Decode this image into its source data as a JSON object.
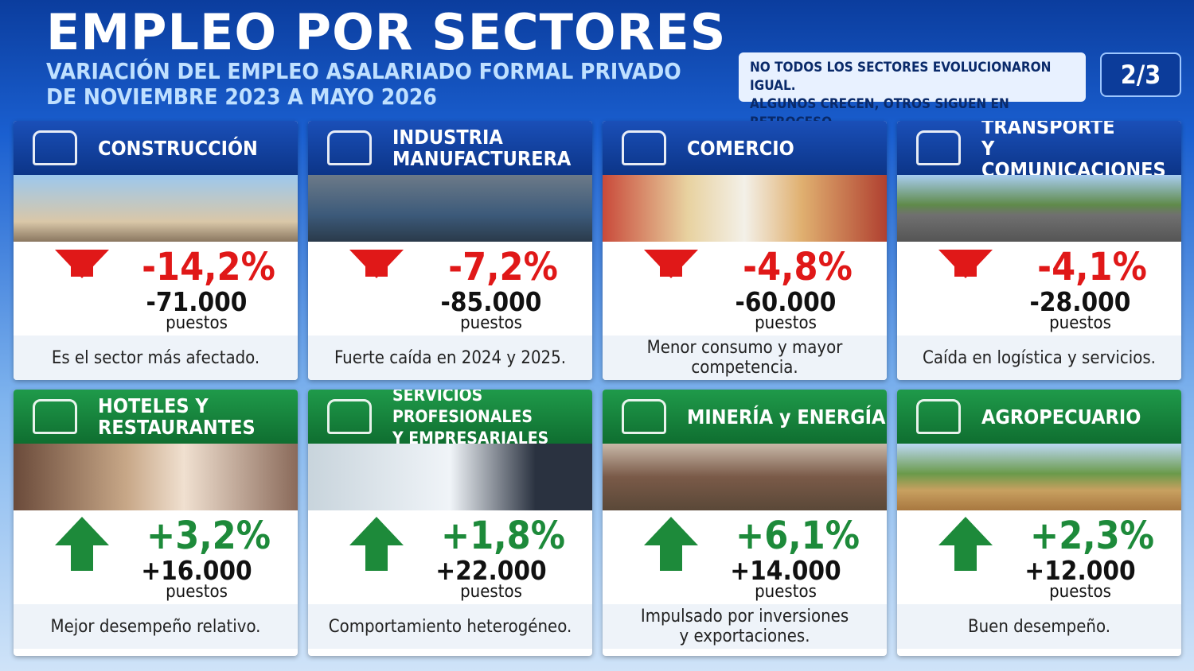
{
  "header": {
    "title": "EMPLEO POR SECTORES",
    "subtitle_lines": [
      "VARIACIÓN DEL EMPLEO ASALARIADO FORMAL PRIVADO",
      "DE NOVIEMBRE 2023 A MAYO 2026"
    ],
    "note_lines": [
      "NO TODOS LOS SECTORES EVOLUCIONARON IGUAL.",
      "ALGUNOS CRECEN, OTROS SIGUEN EN RETROCESO."
    ],
    "page": "2/3"
  },
  "cards": [
    {
      "title_lines": [
        "CONSTRUCCIÓN"
      ],
      "trend": "down",
      "percent": "-14,2%",
      "jobs": "-71.000",
      "unit": "puestos",
      "description_lines": [
        "Es el sector más afectado."
      ]
    },
    {
      "title_lines": [
        "INDUSTRIA",
        "MANUFACTURERA"
      ],
      "trend": "down",
      "percent": "-7,2%",
      "jobs": "-85.000",
      "unit": "puestos",
      "description_lines": [
        "Fuerte caída en 2024 y 2025."
      ]
    },
    {
      "title_lines": [
        "COMERCIO"
      ],
      "trend": "down",
      "percent": "-4,8%",
      "jobs": "-60.000",
      "unit": "puestos",
      "description_lines": [
        "Menor consumo y mayor",
        "competencia."
      ]
    },
    {
      "title_lines": [
        "TRANSPORTE",
        "Y COMUNICACIONES"
      ],
      "trend": "down",
      "percent": "-4,1%",
      "jobs": "-28.000",
      "unit": "puestos",
      "description_lines": [
        "Caída en logística y servicios."
      ]
    },
    {
      "title_lines": [
        "HOTELES Y",
        "RESTAURANTES"
      ],
      "trend": "up",
      "percent": "+3,2%",
      "jobs": "+16.000",
      "unit": "puestos",
      "description_lines": [
        "Mejor desempeño relativo."
      ]
    },
    {
      "title_lines": [
        "SERVICIOS PROFESIONALES",
        "Y EMPRESARIALES"
      ],
      "trend": "up",
      "percent": "+1,8%",
      "jobs": "+22.000",
      "unit": "puestos",
      "description_lines": [
        "Comportamiento heterogéneo."
      ]
    },
    {
      "title_lines": [
        "MINERÍA y ENERGÍA"
      ],
      "trend": "up",
      "percent": "+6,1%",
      "jobs": "+14.000",
      "unit": "puestos",
      "description_lines": [
        "Impulsado por inversiones",
        "y exportaciones."
      ]
    },
    {
      "title_lines": [
        "AGROPECUARIO"
      ],
      "trend": "up",
      "percent": "+2,3%",
      "jobs": "+12.000",
      "unit": "puestos",
      "description_lines": [
        "Buen desempeño."
      ]
    }
  ]
}
